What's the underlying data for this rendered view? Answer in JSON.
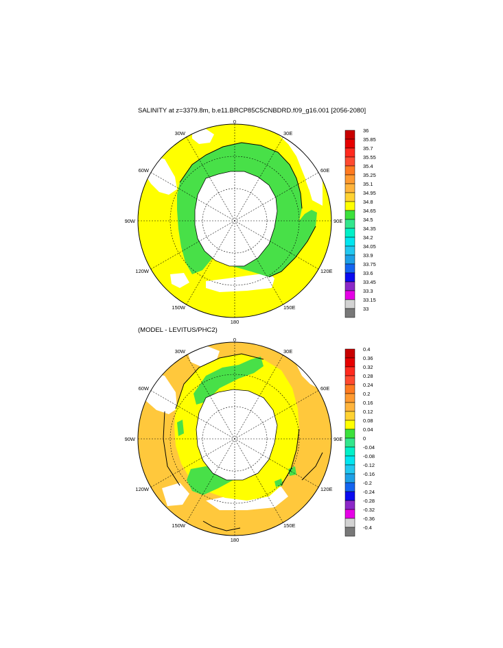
{
  "panels": [
    {
      "title": "SALINITY at z=3379.8m, b.e11.BRCP85C5CNBDRD.f09_g16.001 [2056-2080]",
      "colorbar": {
        "labels": [
          "36",
          "35.85",
          "35.7",
          "35.55",
          "35.4",
          "35.25",
          "35.1",
          "34.95",
          "34.8",
          "34.65",
          "34.5",
          "34.35",
          "34.2",
          "34.05",
          "33.9",
          "33.75",
          "33.6",
          "33.45",
          "33.3",
          "33.15",
          "33"
        ],
        "colors": [
          "#c80000",
          "#e60000",
          "#ff2a1e",
          "#ff4a30",
          "#ff7a20",
          "#ff9a30",
          "#ffb43c",
          "#ffd232",
          "#ffff00",
          "#3ce13c",
          "#32e68c",
          "#00f0c8",
          "#00e6f0",
          "#22c8f0",
          "#1ea0e6",
          "#1464f0",
          "#0a0af0",
          "#8c28c8",
          "#e600e6",
          "#d2d2d2",
          "#787878"
        ]
      }
    },
    {
      "title": "(MODEL - LEVITUS/PHC2)",
      "colorbar": {
        "labels": [
          "0.4",
          "0.36",
          "0.32",
          "0.28",
          "0.24",
          "0.2",
          "0.16",
          "0.12",
          "0.08",
          "0.04",
          "0",
          "-0.04",
          "-0.08",
          "-0.12",
          "-0.16",
          "-0.2",
          "-0.24",
          "-0.28",
          "-0.32",
          "-0.36",
          "-0.4"
        ],
        "colors": [
          "#c80000",
          "#e60000",
          "#ff2a1e",
          "#ff4a30",
          "#ff7a20",
          "#ff9a30",
          "#ffb43c",
          "#ffd232",
          "#ffff00",
          "#3ce13c",
          "#32e68c",
          "#00f0c8",
          "#00e6f0",
          "#22c8f0",
          "#1ea0e6",
          "#1464f0",
          "#0a0af0",
          "#8c28c8",
          "#e600e6",
          "#d2d2d2",
          "#787878"
        ]
      }
    }
  ],
  "map": {
    "longitude_labels": [
      "0",
      "30E",
      "60E",
      "90E",
      "120E",
      "150E",
      "180",
      "150W",
      "120W",
      "90W",
      "60W",
      "30W"
    ],
    "fill_colors": {
      "yellow": "#ffff00",
      "green": "#48e048",
      "orange": "#ffc83c",
      "orange_dark": "#ffac3c",
      "land": "#ffffff"
    }
  }
}
